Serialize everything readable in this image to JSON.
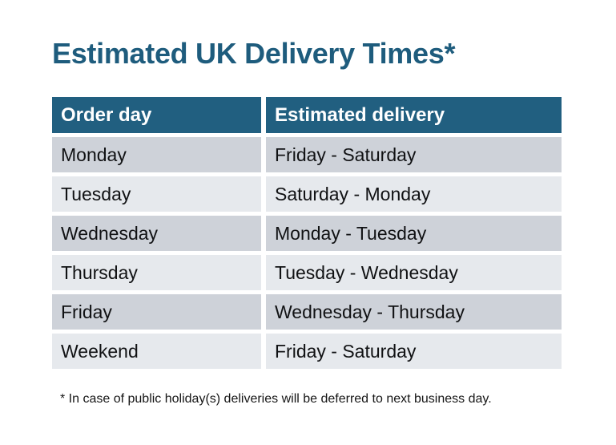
{
  "chart_data": {
    "type": "table",
    "title": "Estimated UK Delivery Times*",
    "columns": [
      "Order day",
      "Estimated delivery"
    ],
    "rows": [
      [
        "Monday",
        "Friday - Saturday"
      ],
      [
        "Tuesday",
        "Saturday - Monday"
      ],
      [
        "Wednesday",
        "Monday - Tuesday"
      ],
      [
        "Thursday",
        "Tuesday - Wednesday"
      ],
      [
        "Friday",
        "Wednesday - Thursday"
      ],
      [
        "Weekend",
        "Friday - Saturday"
      ]
    ],
    "footnote": "* In case of public holiday(s) deliveries will be deferred to next business day."
  },
  "colors": {
    "title": "#1E5C7D",
    "header_bg": "#215F80",
    "header_text": "#FFFFFF",
    "row_dark": "#CED2D9",
    "row_light": "#E6E9ED",
    "cell_text": "#111214",
    "page_bg": "#FFFFFF"
  }
}
